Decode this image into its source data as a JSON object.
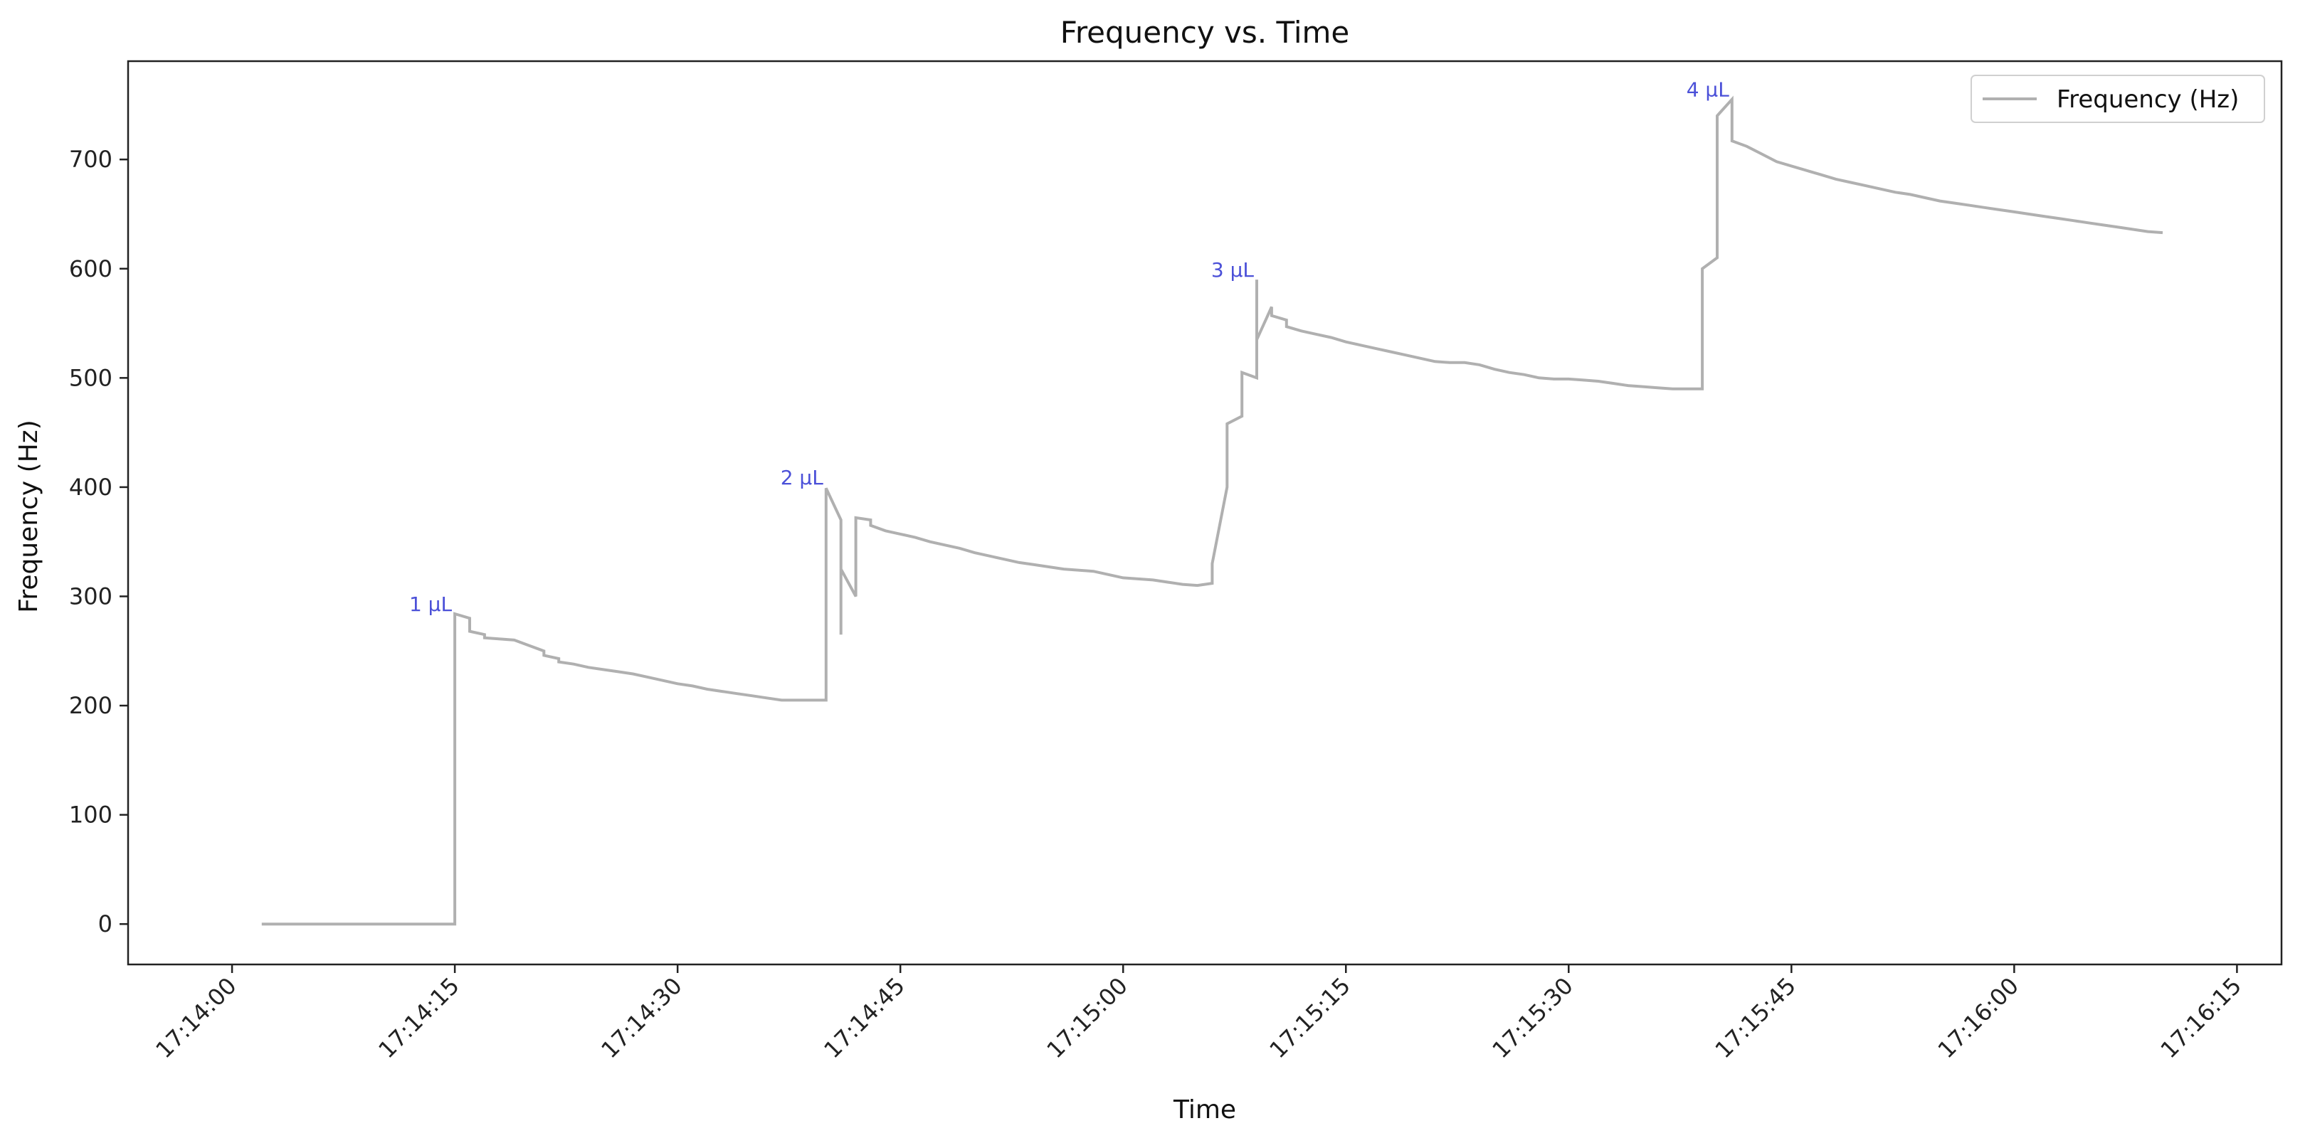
{
  "chart_data": {
    "type": "line",
    "title": "Frequency vs. Time",
    "xlabel": "Time",
    "ylabel": "Frequency (Hz)",
    "xlim": [
      "17:13:53",
      "17:16:18"
    ],
    "ylim": [
      -37,
      790
    ],
    "x_ticks": [
      "17:14:00",
      "17:14:15",
      "17:14:30",
      "17:14:45",
      "17:15:00",
      "17:15:15",
      "17:15:30",
      "17:15:45",
      "17:16:00",
      "17:16:15"
    ],
    "y_ticks": [
      0,
      100,
      200,
      300,
      400,
      500,
      600,
      700
    ],
    "grid": false,
    "legend": {
      "placement": "top-right",
      "entries": [
        "Frequency (Hz)"
      ]
    },
    "series_color": "#b0b0b0",
    "annotation_color": "#4b50d8",
    "series": [
      {
        "name": "Frequency (Hz)",
        "points": [
          [
            "17:14:02",
            0
          ],
          [
            "17:14:15",
            0
          ],
          [
            "17:14:15",
            284
          ],
          [
            "17:14:16",
            280
          ],
          [
            "17:14:16",
            268
          ],
          [
            "17:14:17",
            265
          ],
          [
            "17:14:17",
            262
          ],
          [
            "17:14:19",
            260
          ],
          [
            "17:14:20",
            255
          ],
          [
            "17:14:21",
            250
          ],
          [
            "17:14:21",
            246
          ],
          [
            "17:14:22",
            243
          ],
          [
            "17:14:22",
            240
          ],
          [
            "17:14:23",
            238
          ],
          [
            "17:14:24",
            235
          ],
          [
            "17:14:25",
            233
          ],
          [
            "17:14:26",
            231
          ],
          [
            "17:14:27",
            229
          ],
          [
            "17:14:28",
            226
          ],
          [
            "17:14:29",
            223
          ],
          [
            "17:14:30",
            220
          ],
          [
            "17:14:31",
            218
          ],
          [
            "17:14:32",
            215
          ],
          [
            "17:14:33",
            213
          ],
          [
            "17:14:34",
            211
          ],
          [
            "17:14:35",
            209
          ],
          [
            "17:14:36",
            207
          ],
          [
            "17:14:37",
            205
          ],
          [
            "17:14:40",
            205
          ],
          [
            "17:14:40",
            399
          ],
          [
            "17:14:41",
            370
          ],
          [
            "17:14:41",
            265
          ],
          [
            "17:14:41",
            325
          ],
          [
            "17:14:42",
            300
          ],
          [
            "17:14:42",
            372
          ],
          [
            "17:14:43",
            370
          ],
          [
            "17:14:43",
            365
          ],
          [
            "17:14:44",
            360
          ],
          [
            "17:14:45",
            357
          ],
          [
            "17:14:46",
            354
          ],
          [
            "17:14:47",
            350
          ],
          [
            "17:14:48",
            347
          ],
          [
            "17:14:49",
            344
          ],
          [
            "17:14:50",
            340
          ],
          [
            "17:14:51",
            337
          ],
          [
            "17:14:52",
            334
          ],
          [
            "17:14:53",
            331
          ],
          [
            "17:14:54",
            329
          ],
          [
            "17:14:55",
            327
          ],
          [
            "17:14:56",
            325
          ],
          [
            "17:14:58",
            323
          ],
          [
            "17:14:59",
            320
          ],
          [
            "17:15:00",
            317
          ],
          [
            "17:15:01",
            316
          ],
          [
            "17:15:02",
            315
          ],
          [
            "17:15:03",
            313
          ],
          [
            "17:15:04",
            311
          ],
          [
            "17:15:05",
            310
          ],
          [
            "17:15:06",
            312
          ],
          [
            "17:15:06",
            330
          ],
          [
            "17:15:07",
            400
          ],
          [
            "17:15:07",
            458
          ],
          [
            "17:15:08",
            465
          ],
          [
            "17:15:08",
            505
          ],
          [
            "17:15:09",
            500
          ],
          [
            "17:15:09",
            590
          ],
          [
            "17:15:09",
            535
          ],
          [
            "17:15:10",
            565
          ],
          [
            "17:15:10",
            557
          ],
          [
            "17:15:11",
            553
          ],
          [
            "17:15:11",
            547
          ],
          [
            "17:15:12",
            543
          ],
          [
            "17:15:13",
            540
          ],
          [
            "17:15:14",
            537
          ],
          [
            "17:15:15",
            533
          ],
          [
            "17:15:16",
            530
          ],
          [
            "17:15:17",
            527
          ],
          [
            "17:15:18",
            524
          ],
          [
            "17:15:19",
            521
          ],
          [
            "17:15:20",
            518
          ],
          [
            "17:15:21",
            515
          ],
          [
            "17:15:22",
            514
          ],
          [
            "17:15:23",
            514
          ],
          [
            "17:15:24",
            512
          ],
          [
            "17:15:25",
            508
          ],
          [
            "17:15:26",
            505
          ],
          [
            "17:15:27",
            503
          ],
          [
            "17:15:28",
            500
          ],
          [
            "17:15:29",
            499
          ],
          [
            "17:15:30",
            499
          ],
          [
            "17:15:31",
            498
          ],
          [
            "17:15:32",
            497
          ],
          [
            "17:15:33",
            495
          ],
          [
            "17:15:34",
            493
          ],
          [
            "17:15:35",
            492
          ],
          [
            "17:15:36",
            491
          ],
          [
            "17:15:37",
            490
          ],
          [
            "17:15:38",
            490
          ],
          [
            "17:15:39",
            490
          ],
          [
            "17:15:39",
            600
          ],
          [
            "17:15:40",
            610
          ],
          [
            "17:15:40",
            740
          ],
          [
            "17:15:41",
            755
          ],
          [
            "17:15:41",
            717
          ],
          [
            "17:15:42",
            712
          ],
          [
            "17:15:43",
            705
          ],
          [
            "17:15:44",
            698
          ],
          [
            "17:15:45",
            694
          ],
          [
            "17:15:46",
            690
          ],
          [
            "17:15:47",
            686
          ],
          [
            "17:15:48",
            682
          ],
          [
            "17:15:49",
            679
          ],
          [
            "17:15:50",
            676
          ],
          [
            "17:15:51",
            673
          ],
          [
            "17:15:52",
            670
          ],
          [
            "17:15:53",
            668
          ],
          [
            "17:15:54",
            665
          ],
          [
            "17:15:55",
            662
          ],
          [
            "17:15:56",
            660
          ],
          [
            "17:15:57",
            658
          ],
          [
            "17:15:58",
            656
          ],
          [
            "17:15:59",
            654
          ],
          [
            "17:16:00",
            652
          ],
          [
            "17:16:01",
            650
          ],
          [
            "17:16:02",
            648
          ],
          [
            "17:16:03",
            646
          ],
          [
            "17:16:04",
            644
          ],
          [
            "17:16:05",
            642
          ],
          [
            "17:16:06",
            640
          ],
          [
            "17:16:07",
            638
          ],
          [
            "17:16:08",
            636
          ],
          [
            "17:16:09",
            634
          ],
          [
            "17:16:10",
            633
          ]
        ]
      }
    ],
    "annotations": [
      {
        "text": "1 μL",
        "x": "17:14:15",
        "y": 284
      },
      {
        "text": "2 μL",
        "x": "17:14:40",
        "y": 400
      },
      {
        "text": "3 μL",
        "x": "17:15:09",
        "y": 590
      },
      {
        "text": "4 μL",
        "x": "17:15:41",
        "y": 755
      }
    ]
  }
}
